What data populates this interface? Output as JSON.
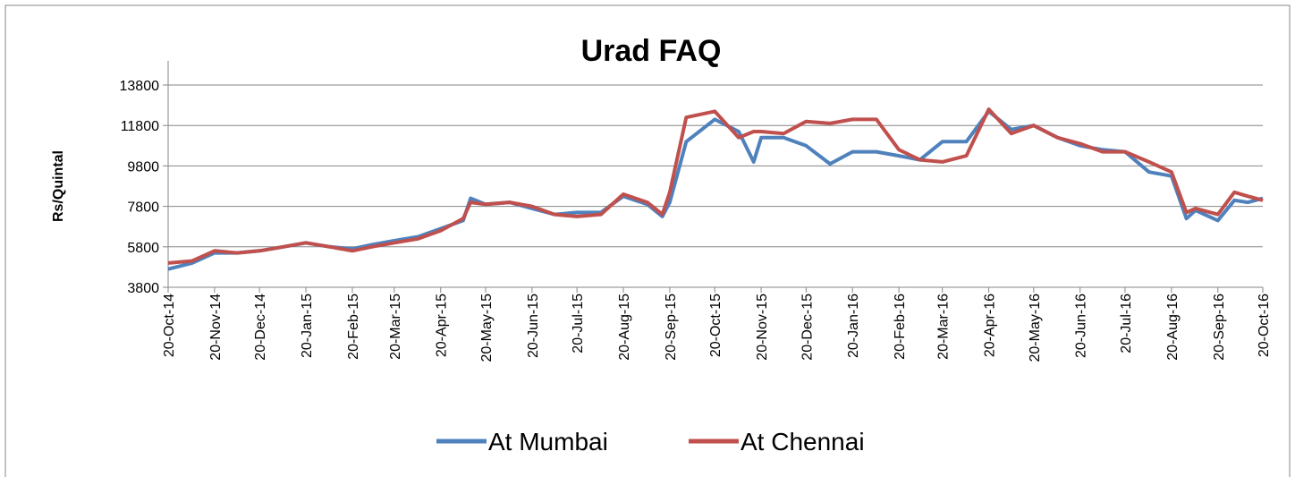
{
  "chart_data": {
    "type": "line",
    "title": "Urad FAQ",
    "y_label": "Rs/Quintal",
    "x": [
      "2014-10-20",
      "2014-11-05",
      "2014-11-20",
      "2014-12-05",
      "2014-12-20",
      "2015-01-05",
      "2015-01-20",
      "2015-02-05",
      "2015-02-20",
      "2015-03-05",
      "2015-03-20",
      "2015-04-05",
      "2015-04-20",
      "2015-05-05",
      "2015-05-10",
      "2015-05-20",
      "2015-06-05",
      "2015-06-20",
      "2015-07-05",
      "2015-07-20",
      "2015-08-05",
      "2015-08-20",
      "2015-09-05",
      "2015-09-15",
      "2015-09-20",
      "2015-10-01",
      "2015-10-20",
      "2015-11-05",
      "2015-11-15",
      "2015-11-20",
      "2015-12-05",
      "2015-12-20",
      "2016-01-05",
      "2016-01-20",
      "2016-02-05",
      "2016-02-20",
      "2016-03-05",
      "2016-03-20",
      "2016-04-05",
      "2016-04-20",
      "2016-05-05",
      "2016-05-20",
      "2016-06-05",
      "2016-06-20",
      "2016-07-05",
      "2016-07-20",
      "2016-08-05",
      "2016-08-20",
      "2016-08-30",
      "2016-09-05",
      "2016-09-20",
      "2016-10-01",
      "2016-10-10",
      "2016-10-20"
    ],
    "series": [
      {
        "name": "At Mumbai",
        "color": "#4f81bd",
        "values": [
          4700,
          5000,
          5500,
          5500,
          5600,
          5800,
          6000,
          5800,
          5700,
          5900,
          6100,
          6300,
          6700,
          7100,
          8200,
          7900,
          8000,
          7700,
          7400,
          7500,
          7500,
          8300,
          7900,
          7300,
          8000,
          11000,
          12100,
          11500,
          10000,
          11200,
          11200,
          10800,
          9900,
          10500,
          10500,
          10300,
          10100,
          11000,
          11000,
          12500,
          11600,
          11800,
          11200,
          10800,
          10600,
          10500,
          9500,
          9300,
          7200,
          7600,
          7100,
          8100,
          8000,
          8200
        ]
      },
      {
        "name": "At Chennai",
        "color": "#c0504d",
        "values": [
          5000,
          5100,
          5600,
          5500,
          5600,
          5800,
          6000,
          5800,
          5600,
          5800,
          6000,
          6200,
          6600,
          7200,
          8000,
          7900,
          8000,
          7800,
          7400,
          7300,
          7400,
          8400,
          8000,
          7400,
          8500,
          12200,
          12500,
          11200,
          11500,
          11500,
          11400,
          12000,
          11900,
          12100,
          12100,
          10600,
          10100,
          10000,
          10300,
          12600,
          11400,
          11800,
          11200,
          10900,
          10500,
          10500,
          10000,
          9500,
          7500,
          7700,
          7400,
          8500,
          8300,
          8100
        ]
      }
    ],
    "ylim": [
      3800,
      13800
    ],
    "yticks": [
      3800,
      5800,
      7800,
      9800,
      11800,
      13800
    ],
    "xlim": [
      "2014-10-20",
      "2016-10-20"
    ],
    "xticks": [
      {
        "value": "2014-10-20",
        "label": "20-Oct-14"
      },
      {
        "value": "2014-11-20",
        "label": "20-Nov-14"
      },
      {
        "value": "2014-12-20",
        "label": "20-Dec-14"
      },
      {
        "value": "2015-01-20",
        "label": "20-Jan-15"
      },
      {
        "value": "2015-02-20",
        "label": "20-Feb-15"
      },
      {
        "value": "2015-03-20",
        "label": "20-Mar-15"
      },
      {
        "value": "2015-04-20",
        "label": "20-Apr-15"
      },
      {
        "value": "2015-05-20",
        "label": "20-May-15"
      },
      {
        "value": "2015-06-20",
        "label": "20-Jun-15"
      },
      {
        "value": "2015-07-20",
        "label": "20-Jul-15"
      },
      {
        "value": "2015-08-20",
        "label": "20-Aug-15"
      },
      {
        "value": "2015-09-20",
        "label": "20-Sep-15"
      },
      {
        "value": "2015-10-20",
        "label": "20-Oct-15"
      },
      {
        "value": "2015-11-20",
        "label": "20-Nov-15"
      },
      {
        "value": "2015-12-20",
        "label": "20-Dec-15"
      },
      {
        "value": "2016-01-20",
        "label": "20-Jan-16"
      },
      {
        "value": "2016-02-20",
        "label": "20-Feb-16"
      },
      {
        "value": "2016-03-20",
        "label": "20-Mar-16"
      },
      {
        "value": "2016-04-20",
        "label": "20-Apr-16"
      },
      {
        "value": "2016-05-20",
        "label": "20-May-16"
      },
      {
        "value": "2016-06-20",
        "label": "20-Jun-16"
      },
      {
        "value": "2016-07-20",
        "label": "20-Jul-16"
      },
      {
        "value": "2016-08-20",
        "label": "20-Aug-16"
      },
      {
        "value": "2016-09-20",
        "label": "20-Sep-16"
      },
      {
        "value": "2016-10-20",
        "label": "20-Oct-16"
      }
    ],
    "grid": true,
    "legend": "bottom"
  }
}
